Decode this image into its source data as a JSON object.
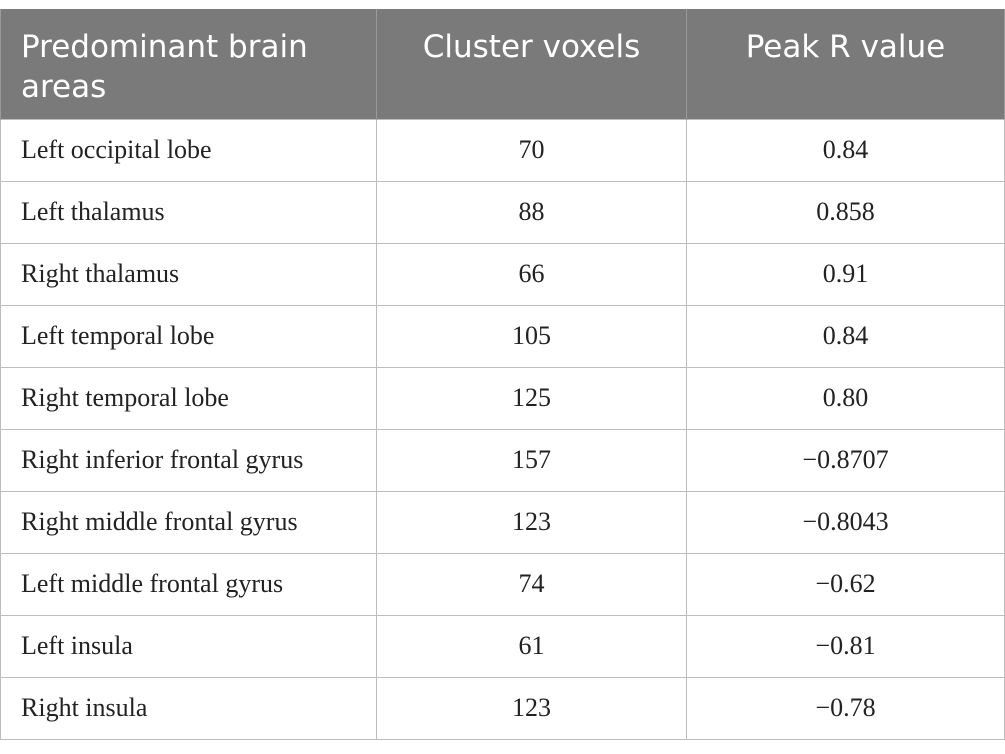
{
  "table": {
    "headers": [
      "Predominant brain areas",
      "Cluster voxels",
      "Peak R value"
    ],
    "rows": [
      [
        "Left occipital lobe",
        "70",
        "0.84"
      ],
      [
        "Left thalamus",
        "88",
        "0.858"
      ],
      [
        "Right thalamus",
        "66",
        "0.91"
      ],
      [
        "Left temporal lobe",
        "105",
        "0.84"
      ],
      [
        "Right temporal lobe",
        "125",
        "0.80"
      ],
      [
        "Right inferior frontal gyrus",
        "157",
        "−0.8707"
      ],
      [
        "Right middle frontal gyrus",
        "123",
        "−0.8043"
      ],
      [
        "Left middle frontal gyrus",
        "74",
        "−0.62"
      ],
      [
        "Left insula",
        "61",
        "−0.81"
      ],
      [
        "Right insula",
        "123",
        "−0.78"
      ]
    ]
  }
}
